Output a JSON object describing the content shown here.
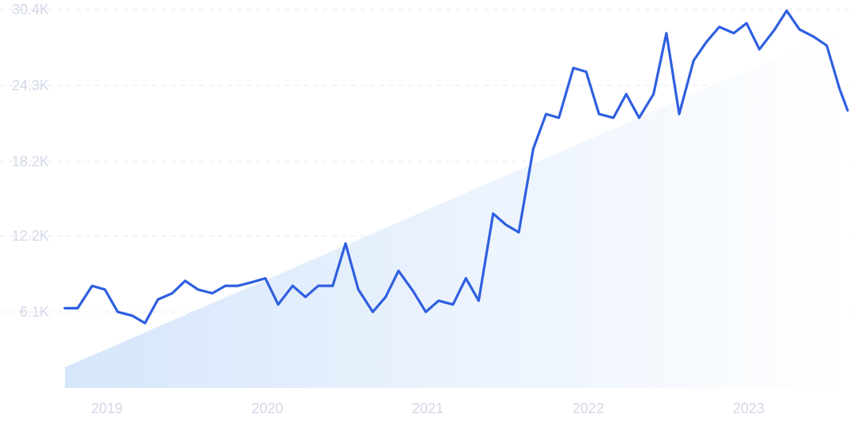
{
  "colors": {
    "line": "#2f5fe0",
    "tick_label": "#d3d8e8",
    "grid": "#e8ebf3",
    "trend_fill_start": "#d6e6fb",
    "trend_fill_end": "#ffffff"
  },
  "chart_data": {
    "type": "line",
    "title": "",
    "xlabel": "",
    "ylabel": "",
    "grid": true,
    "legend": "none",
    "x_range": [
      2018.9,
      2023.78
    ],
    "ylim": [
      0,
      30400
    ],
    "y_ticks": [
      {
        "value": 6100,
        "label": "6.1K"
      },
      {
        "value": 12200,
        "label": "12.2K"
      },
      {
        "value": 18200,
        "label": "18.2K"
      },
      {
        "value": 24300,
        "label": "24.3K"
      },
      {
        "value": 30400,
        "label": "30.4K"
      }
    ],
    "x_ticks": [
      {
        "value": 2019.0,
        "label": "2019"
      },
      {
        "value": 2020.0,
        "label": "2020"
      },
      {
        "value": 2021.0,
        "label": "2021"
      },
      {
        "value": 2022.0,
        "label": "2022"
      },
      {
        "value": 2023.0,
        "label": "2023"
      }
    ],
    "trend_area": {
      "start": 1650,
      "end": 29000
    },
    "series": [
      {
        "x": [
          2018.9,
          2018.98,
          2019.07,
          2019.15,
          2019.23,
          2019.32,
          2019.4,
          2019.48,
          2019.57,
          2019.65,
          2019.73,
          2019.82,
          2019.9,
          2019.98,
          2020.07,
          2020.15,
          2020.23,
          2020.32,
          2020.4,
          2020.48,
          2020.57,
          2020.65,
          2020.73,
          2020.82,
          2020.9,
          2020.98,
          2021.07,
          2021.15,
          2021.23,
          2021.32,
          2021.4,
          2021.48,
          2021.57,
          2021.65,
          2021.73,
          2021.82,
          2021.9,
          2021.98,
          2022.07,
          2022.15,
          2022.23,
          2022.32,
          2022.4,
          2022.48,
          2022.57,
          2022.65,
          2022.73,
          2022.82,
          2022.9,
          2022.98,
          2023.07,
          2023.15,
          2023.23,
          2023.32,
          2023.4,
          2023.48,
          2023.57,
          2023.65,
          2023.73,
          2023.78
        ],
        "values": [
          6400,
          6400,
          8200,
          7900,
          6100,
          5800,
          5200,
          7100,
          7600,
          8600,
          7900,
          7600,
          8200,
          8200,
          8500,
          8800,
          6700,
          8200,
          7300,
          8200,
          8200,
          11600,
          7900,
          6100,
          7300,
          9400,
          7800,
          6100,
          7000,
          6700,
          8800,
          7000,
          14000,
          13100,
          12500,
          19200,
          22000,
          21700,
          25700,
          25400,
          22000,
          21700,
          23600,
          21700,
          23600,
          28500,
          22000,
          26300,
          27800,
          29000,
          28500,
          29300,
          27200,
          28700,
          30300,
          28800,
          28200,
          27500,
          24000,
          22300
        ]
      }
    ]
  }
}
